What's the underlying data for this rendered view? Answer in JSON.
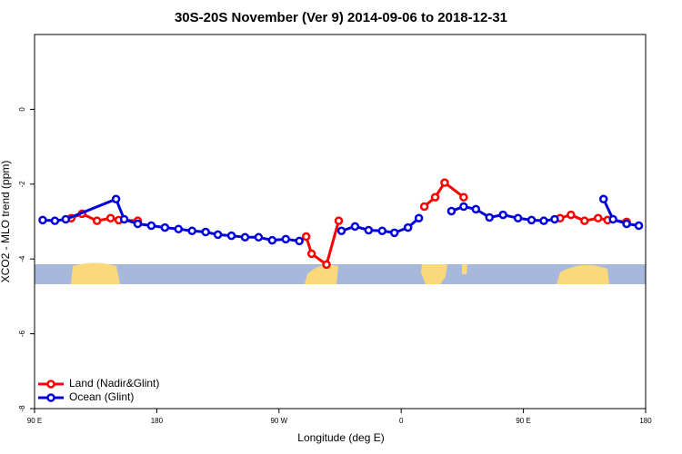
{
  "chart_data": {
    "type": "line",
    "title": "30S-20S November (Ver 9)   2014-09-06 to 2018-12-31",
    "x_label": "Longitude (deg E)",
    "y_label": "XCO2 - MLO trend (ppm)",
    "xlim": [
      90,
      540
    ],
    "xticks": [
      {
        "value": 90,
        "label": "90 E"
      },
      {
        "value": 180,
        "label": "180"
      },
      {
        "value": 270,
        "label": "90 W"
      },
      {
        "value": 360,
        "label": "0"
      },
      {
        "value": 450,
        "label": "90 E"
      },
      {
        "value": 540,
        "label": "180"
      }
    ],
    "ylim": [
      -8,
      2
    ],
    "yticks": [
      -8,
      -6,
      -4,
      -2,
      0
    ],
    "legend": "bottom-left",
    "series": [
      {
        "name": "Land (Nadir&Glint)",
        "color": "#ff0000",
        "x": [
          117,
          125,
          136,
          146,
          152,
          166,
          null,
          290,
          294,
          305,
          314,
          null,
          377,
          385,
          392,
          406,
          null,
          477,
          485,
          495,
          505,
          512,
          526
        ],
        "values": [
          -2.91,
          -2.79,
          -2.98,
          -2.91,
          -2.96,
          -2.98,
          null,
          -3.4,
          -3.86,
          -4.15,
          -2.98,
          null,
          -2.6,
          -2.35,
          -1.96,
          -2.35,
          null,
          -2.91,
          -2.82,
          -2.98,
          -2.91,
          -2.96,
          -3.01
        ]
      },
      {
        "name": "Ocean (Glint)",
        "color": "#0000dd",
        "x": [
          96,
          105,
          113,
          150,
          156,
          166,
          176,
          186,
          196,
          206,
          216,
          225,
          235,
          245,
          255,
          265,
          275,
          285,
          null,
          316,
          326,
          336,
          346,
          355,
          365,
          373,
          null,
          397,
          406,
          415,
          425,
          435,
          446,
          456,
          465,
          473,
          null,
          509,
          516,
          526,
          535
        ],
        "values": [
          -2.96,
          -2.98,
          -2.94,
          -2.4,
          -2.94,
          -3.06,
          -3.11,
          -3.16,
          -3.2,
          -3.25,
          -3.28,
          -3.35,
          -3.38,
          -3.42,
          -3.42,
          -3.5,
          -3.47,
          -3.52,
          null,
          -3.25,
          -3.13,
          -3.23,
          -3.25,
          -3.3,
          -3.16,
          -2.91,
          null,
          -2.72,
          -2.6,
          -2.67,
          -2.89,
          -2.82,
          -2.91,
          -2.96,
          -2.98,
          -2.94,
          null,
          -2.4,
          -2.94,
          -3.06,
          -3.11
        ]
      }
    ]
  }
}
